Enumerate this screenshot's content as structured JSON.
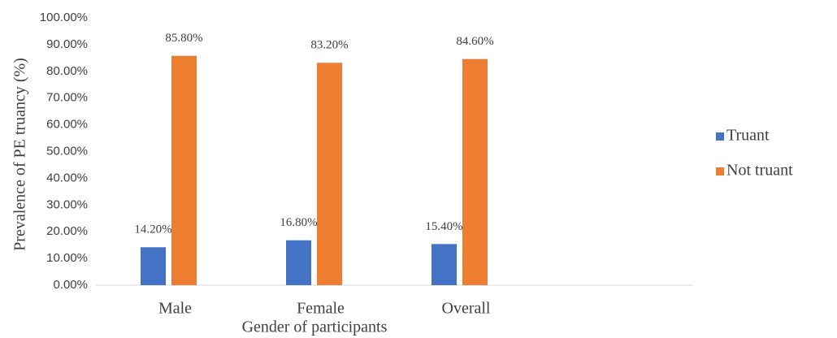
{
  "chart_data": {
    "type": "bar",
    "x_label": "Gender of participants",
    "y_label": "Prevalence of PE truancy (%)",
    "categories": [
      "Male",
      "Female",
      "Overall",
      null
    ],
    "series": [
      {
        "name": "Truant",
        "color": "#4472c4",
        "values": [
          14.2,
          16.8,
          15.4,
          null
        ],
        "value_labels": [
          "14.20%",
          "16.80%",
          "15.40%",
          null
        ]
      },
      {
        "name": "Not truant",
        "color": "#ed7d31",
        "values": [
          85.8,
          83.2,
          84.6,
          null
        ],
        "value_labels": [
          "85.80%",
          "83.20%",
          "84.60%",
          null
        ]
      }
    ],
    "ylim": [
      0,
      100
    ],
    "yticks": [
      {
        "value": 0,
        "label": "0.00%"
      },
      {
        "value": 10,
        "label": "10.00%"
      },
      {
        "value": 20,
        "label": "20.00%"
      },
      {
        "value": 30,
        "label": "30.00%"
      },
      {
        "value": 40,
        "label": "40.00%"
      },
      {
        "value": 50,
        "label": "50.00%"
      },
      {
        "value": 60,
        "label": "60.00%"
      },
      {
        "value": 70,
        "label": "70.00%"
      },
      {
        "value": 80,
        "label": "80.00%"
      },
      {
        "value": 90,
        "label": "90.00%"
      },
      {
        "value": 100,
        "label": "100.00%"
      }
    ],
    "grid": false,
    "legend": "right"
  }
}
